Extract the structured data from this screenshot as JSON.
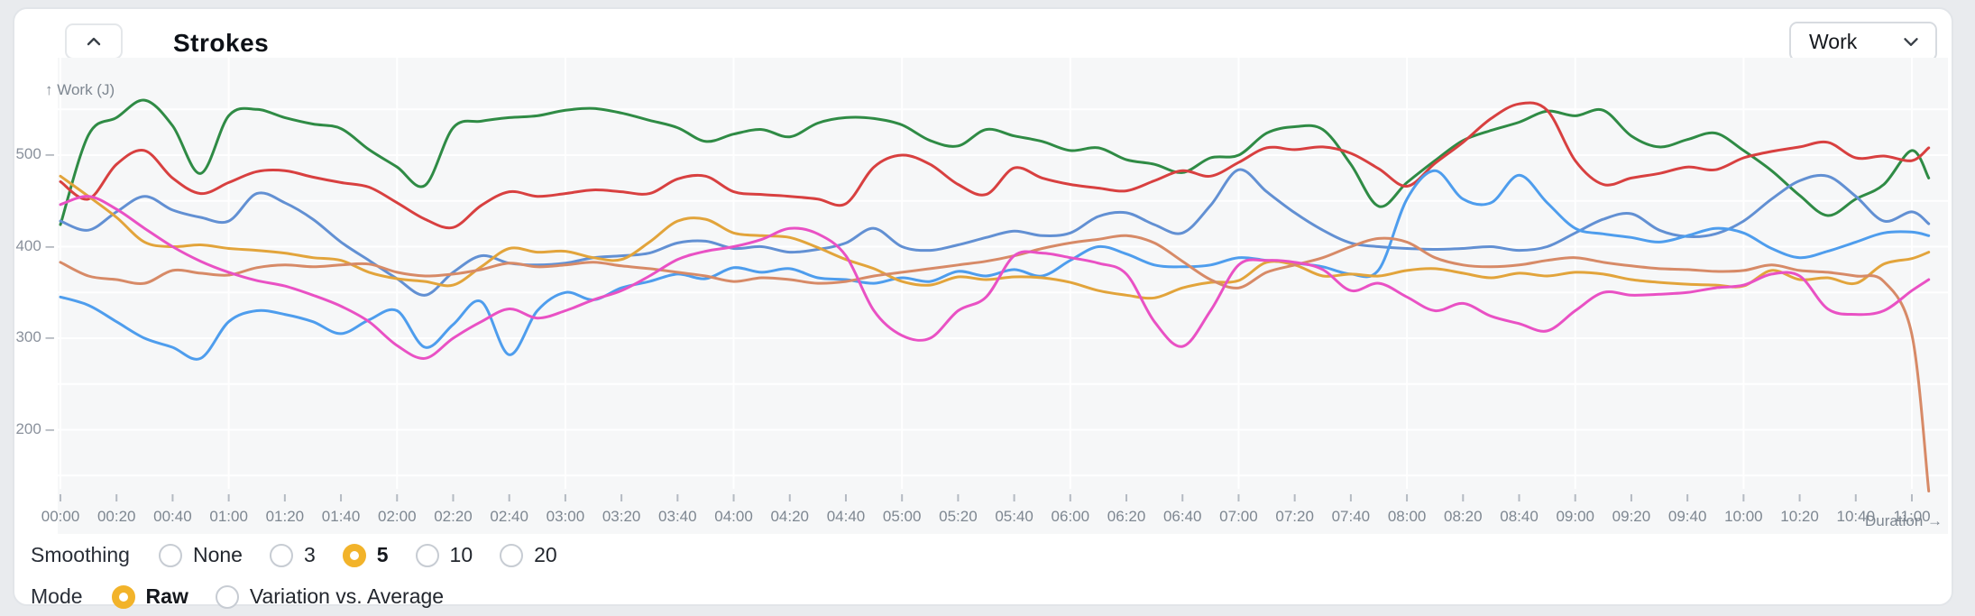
{
  "panel": {
    "title": "Strokes",
    "collapse_icon": "chevron-up",
    "metric_select": {
      "value": "Work",
      "options": [
        "Work"
      ]
    }
  },
  "controls": {
    "smoothing": {
      "label": "Smoothing",
      "options": [
        {
          "label": "None",
          "selected": false
        },
        {
          "label": "3",
          "selected": false
        },
        {
          "label": "5",
          "selected": true
        },
        {
          "label": "10",
          "selected": false
        },
        {
          "label": "20",
          "selected": false
        }
      ]
    },
    "mode": {
      "label": "Mode",
      "options": [
        {
          "label": "Raw",
          "selected": true
        },
        {
          "label": "Variation vs. Average",
          "selected": false
        }
      ]
    }
  },
  "colors": {
    "page_bg": "#e9ebee",
    "card_bg": "#ffffff",
    "plot_bg": "#f6f7f8",
    "grid_line": "#ffffff",
    "tick_text": "#7e8791",
    "accent_radio": "#f2b32a"
  },
  "chart_data": {
    "type": "line",
    "title": "Strokes",
    "xlabel": "Duration →",
    "ylabel": "Work (J)",
    "ylabel_display": "↑ Work (J)",
    "x_unit": "minutes",
    "xlim_minutes": [
      0,
      672
    ],
    "ylim": [
      120,
      600
    ],
    "grid": {
      "horizontal_every": 50,
      "vertical_every_minutes": 60,
      "grid_on": true
    },
    "legend": "none",
    "y_ticks": [
      "500",
      "400",
      "300",
      "200"
    ],
    "y_tick_values": [
      500,
      400,
      300,
      200
    ],
    "x_ticks_every_min": 20,
    "x_tick_labels": [
      "00:00",
      "00:20",
      "00:40",
      "01:00",
      "01:20",
      "01:40",
      "02:00",
      "02:20",
      "02:40",
      "03:00",
      "03:20",
      "03:40",
      "04:00",
      "04:20",
      "04:40",
      "05:00",
      "05:20",
      "05:40",
      "06:00",
      "06:20",
      "06:40",
      "07:00",
      "07:20",
      "07:40",
      "08:00",
      "08:20",
      "08:40",
      "09:00",
      "09:20",
      "09:40",
      "10:00",
      "10:20",
      "10:40",
      "11:00"
    ],
    "x_minutes": [
      0,
      10,
      20,
      30,
      40,
      50,
      60,
      70,
      80,
      90,
      100,
      110,
      120,
      130,
      140,
      150,
      160,
      170,
      180,
      190,
      200,
      210,
      220,
      230,
      240,
      250,
      260,
      270,
      280,
      290,
      300,
      310,
      320,
      330,
      340,
      350,
      360,
      370,
      380,
      390,
      400,
      410,
      420,
      430,
      440,
      450,
      460,
      470,
      480,
      490,
      500,
      510,
      520,
      530,
      540,
      550,
      560,
      570,
      580,
      590,
      600,
      610,
      620,
      630,
      640,
      650,
      660,
      666
    ],
    "series": [
      {
        "name": "green",
        "color": "#2f8b45",
        "values": [
          424,
          522,
          541,
          560,
          532,
          480,
          543,
          550,
          541,
          534,
          529,
          506,
          487,
          467,
          530,
          537,
          541,
          543,
          549,
          551,
          546,
          538,
          530,
          515,
          523,
          528,
          520,
          535,
          541,
          540,
          533,
          516,
          510,
          528,
          521,
          515,
          505,
          508,
          495,
          490,
          481,
          497,
          500,
          524,
          531,
          528,
          490,
          444,
          470,
          494,
          516,
          527,
          536,
          548,
          543,
          549,
          521,
          509,
          517,
          524,
          505,
          483,
          456,
          434,
          452,
          468,
          505,
          475
        ]
      },
      {
        "name": "red",
        "color": "#d84040",
        "values": [
          471,
          452,
          490,
          505,
          475,
          458,
          470,
          482,
          483,
          476,
          470,
          465,
          448,
          430,
          421,
          445,
          460,
          455,
          458,
          462,
          460,
          458,
          474,
          477,
          460,
          457,
          455,
          452,
          447,
          487,
          500,
          490,
          468,
          457,
          486,
          475,
          468,
          464,
          461,
          472,
          483,
          477,
          492,
          508,
          506,
          509,
          502,
          485,
          466,
          491,
          514,
          540,
          556,
          549,
          494,
          468,
          475,
          480,
          487,
          484,
          497,
          504,
          509,
          514,
          497,
          499,
          494,
          508
        ]
      },
      {
        "name": "blue",
        "color": "#6290d3",
        "values": [
          428,
          418,
          438,
          455,
          440,
          432,
          428,
          458,
          448,
          430,
          405,
          385,
          365,
          347,
          372,
          390,
          382,
          380,
          382,
          388,
          390,
          393,
          404,
          406,
          398,
          400,
          394,
          397,
          404,
          420,
          400,
          396,
          402,
          410,
          417,
          412,
          415,
          433,
          437,
          424,
          415,
          445,
          484,
          460,
          437,
          418,
          404,
          400,
          398,
          397,
          398,
          400,
          396,
          400,
          415,
          430,
          436,
          418,
          411,
          414,
          428,
          452,
          472,
          477,
          455,
          428,
          438,
          425
        ]
      },
      {
        "name": "light-blue",
        "color": "#4e9ded",
        "values": [
          345,
          336,
          318,
          300,
          290,
          278,
          318,
          330,
          326,
          318,
          305,
          320,
          330,
          290,
          315,
          340,
          282,
          330,
          350,
          342,
          355,
          362,
          370,
          365,
          377,
          372,
          376,
          366,
          364,
          360,
          366,
          362,
          373,
          368,
          375,
          368,
          385,
          400,
          392,
          380,
          378,
          380,
          388,
          385,
          382,
          378,
          370,
          375,
          452,
          483,
          452,
          448,
          478,
          448,
          420,
          414,
          410,
          405,
          412,
          420,
          415,
          398,
          388,
          395,
          405,
          415,
          416,
          412
        ]
      },
      {
        "name": "orange",
        "color": "#e2a43b",
        "values": [
          477,
          455,
          432,
          405,
          400,
          402,
          398,
          396,
          393,
          388,
          385,
          372,
          365,
          362,
          358,
          378,
          398,
          394,
          395,
          388,
          386,
          405,
          428,
          430,
          415,
          412,
          410,
          399,
          386,
          376,
          362,
          358,
          367,
          364,
          367,
          366,
          361,
          352,
          347,
          344,
          355,
          361,
          363,
          383,
          380,
          368,
          370,
          368,
          374,
          376,
          371,
          366,
          371,
          368,
          372,
          370,
          364,
          361,
          359,
          358,
          357,
          374,
          364,
          366,
          360,
          381,
          387,
          394
        ]
      },
      {
        "name": "coral",
        "color": "#d78a67",
        "values": [
          383,
          368,
          364,
          360,
          374,
          371,
          369,
          377,
          380,
          378,
          380,
          381,
          372,
          368,
          370,
          375,
          382,
          378,
          380,
          383,
          379,
          376,
          372,
          368,
          362,
          366,
          364,
          360,
          362,
          368,
          372,
          376,
          380,
          384,
          390,
          398,
          404,
          408,
          412,
          404,
          384,
          364,
          355,
          372,
          380,
          388,
          400,
          409,
          405,
          388,
          380,
          378,
          380,
          385,
          388,
          383,
          379,
          376,
          375,
          373,
          374,
          380,
          374,
          372,
          368,
          362,
          304,
          133
        ]
      },
      {
        "name": "pink",
        "color": "#e951c4",
        "values": [
          446,
          455,
          441,
          420,
          400,
          384,
          372,
          363,
          357,
          347,
          335,
          318,
          292,
          278,
          300,
          318,
          332,
          322,
          330,
          342,
          352,
          368,
          386,
          395,
          400,
          408,
          420,
          414,
          390,
          330,
          303,
          300,
          330,
          345,
          390,
          393,
          388,
          382,
          370,
          318,
          291,
          330,
          380,
          385,
          383,
          375,
          352,
          360,
          345,
          330,
          338,
          324,
          316,
          308,
          330,
          350,
          347,
          348,
          350,
          355,
          358,
          370,
          368,
          332,
          326,
          330,
          352,
          364
        ]
      }
    ]
  }
}
